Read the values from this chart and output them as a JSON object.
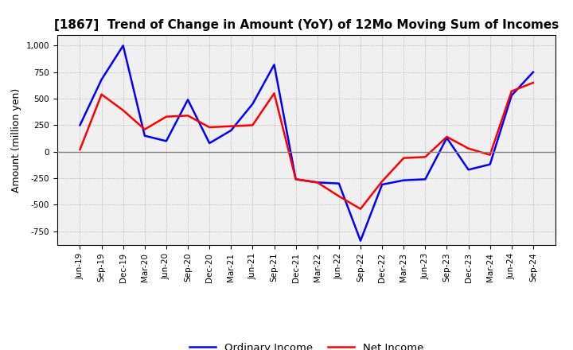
{
  "title": "[1867]  Trend of Change in Amount (YoY) of 12Mo Moving Sum of Incomes",
  "ylabel": "Amount (million yen)",
  "x_labels": [
    "Jun-19",
    "Sep-19",
    "Dec-19",
    "Mar-20",
    "Jun-20",
    "Sep-20",
    "Dec-20",
    "Mar-21",
    "Jun-21",
    "Sep-21",
    "Dec-21",
    "Mar-22",
    "Jun-22",
    "Sep-22",
    "Dec-22",
    "Mar-23",
    "Jun-23",
    "Sep-23",
    "Dec-23",
    "Mar-24",
    "Jun-24",
    "Sep-24"
  ],
  "ordinary_income": [
    250,
    680,
    1000,
    150,
    100,
    490,
    80,
    200,
    450,
    820,
    -260,
    -290,
    -300,
    -840,
    -310,
    -270,
    -260,
    130,
    -170,
    -120,
    530,
    750
  ],
  "net_income": [
    20,
    540,
    390,
    210,
    330,
    340,
    230,
    240,
    250,
    550,
    -260,
    -290,
    -420,
    -540,
    -280,
    -60,
    -50,
    140,
    30,
    -30,
    570,
    650
  ],
  "ordinary_color": "#0000FF",
  "net_color": "#FF0000",
  "ylim": [
    -880,
    1100
  ],
  "yticks": [
    -750,
    -500,
    -250,
    0,
    250,
    500,
    750,
    1000
  ],
  "plot_bg_color": "#F0F0F0",
  "fig_bg_color": "#FFFFFF",
  "grid_color": "#AAAAAA",
  "zero_line_color": "#808080",
  "legend_labels": [
    "Ordinary Income",
    "Net Income"
  ],
  "title_fontsize": 11,
  "ylabel_fontsize": 9,
  "tick_fontsize": 7.5
}
